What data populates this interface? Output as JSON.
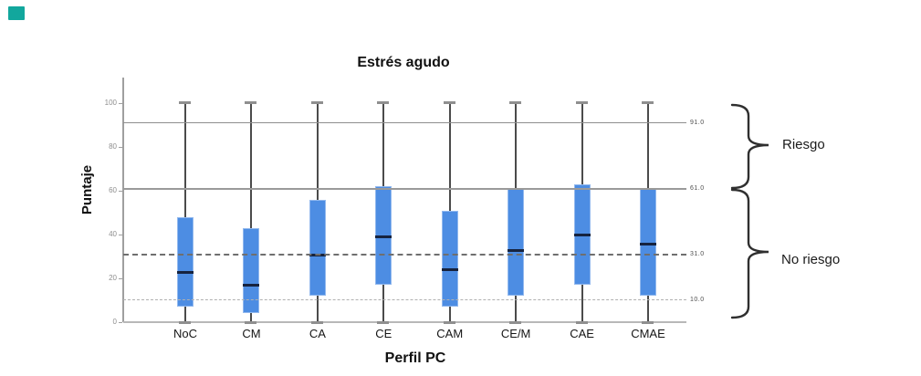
{
  "chart_data": {
    "type": "boxplot",
    "title": "Estrés agudo",
    "xlabel": "Perfil PC",
    "ylabel": "Puntaje",
    "ylim": [
      0,
      100
    ],
    "yticks": [
      "0",
      "20",
      "40",
      "60",
      "80",
      "100"
    ],
    "ytick_values": [
      0,
      20,
      40,
      60,
      80,
      100
    ],
    "grid": "off",
    "categories": [
      "NoC",
      "CM",
      "CA",
      "CE",
      "CAM",
      "CE/M",
      "CAE",
      "CMAE"
    ],
    "series": [
      {
        "name": "NoC",
        "min": 0,
        "q1": 7,
        "median": 23,
        "q3": 48,
        "max": 100
      },
      {
        "name": "CM",
        "min": 0,
        "q1": 4,
        "median": 17,
        "q3": 43,
        "max": 100
      },
      {
        "name": "CA",
        "min": 0,
        "q1": 12,
        "median": 31,
        "q3": 56,
        "max": 100
      },
      {
        "name": "CE",
        "min": 0,
        "q1": 17,
        "median": 39,
        "q3": 62,
        "max": 100
      },
      {
        "name": "CAM",
        "min": 0,
        "q1": 7,
        "median": 24,
        "q3": 51,
        "max": 100
      },
      {
        "name": "CE/M",
        "min": 0,
        "q1": 12,
        "median": 33,
        "q3": 61,
        "max": 100
      },
      {
        "name": "CAE",
        "min": 0,
        "q1": 17,
        "median": 40,
        "q3": 63,
        "max": 100
      },
      {
        "name": "CMAE",
        "min": 0,
        "q1": 12,
        "median": 36,
        "q3": 61,
        "max": 100
      }
    ],
    "reference_lines": [
      {
        "value": 91,
        "label": "91.0",
        "style": "solid",
        "color": "#8f8f8f",
        "width": 1
      },
      {
        "value": 61,
        "label": "61.0",
        "style": "solid",
        "color": "#9a9a9a",
        "width": 2
      },
      {
        "value": 31,
        "label": "31.0",
        "style": "dashed",
        "color": "#6f6f6f",
        "width": 2
      },
      {
        "value": 10,
        "label": "10.0",
        "style": "dashed",
        "color": "#b0b0b0",
        "width": 1
      }
    ],
    "regions": [
      {
        "label": "Riesgo",
        "from": 61,
        "to": 100
      },
      {
        "label": "No riesgo",
        "from": 0,
        "to": 61
      }
    ],
    "box_color": "#4D8DE3",
    "box_edge_color": "#93b9ee",
    "median_color": "#16233F",
    "whisker_color": "#4b4b4b",
    "cap_color": "#8f8f8f",
    "axis_color": "#9f9f9f",
    "marker_color": "#12A79D",
    "legend": "none"
  }
}
